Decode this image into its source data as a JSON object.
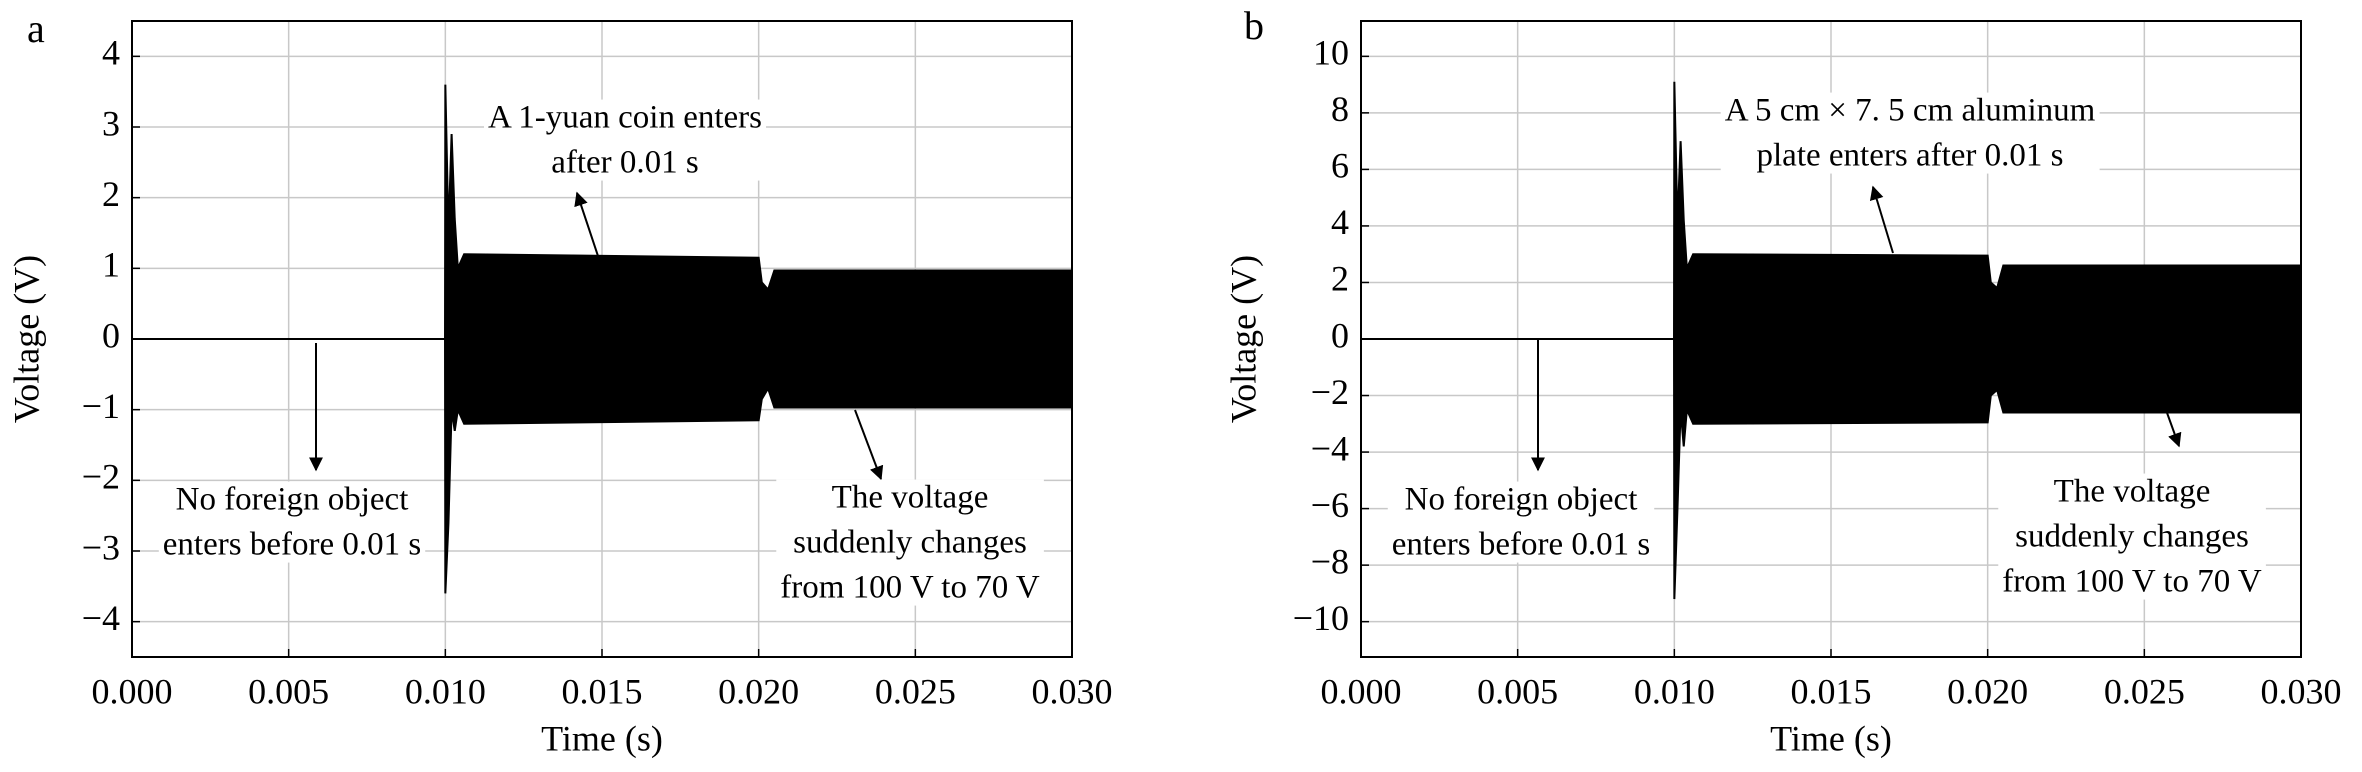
{
  "chart_data": [
    {
      "type": "area",
      "label": "a",
      "xlabel": "Time (s)",
      "ylabel": "Voltage (V)",
      "color": "#000000",
      "grid": true,
      "x": [
        0,
        0.00999,
        0.01,
        0.0101,
        0.0102,
        0.0103,
        0.0104,
        0.0106,
        0.02,
        0.0201,
        0.0203,
        0.0205,
        0.03
      ],
      "high": [
        0,
        0,
        3.6,
        1.5,
        2.9,
        1.7,
        1.0,
        1.2,
        1.15,
        0.8,
        0.7,
        0.97,
        0.97
      ],
      "low": [
        0,
        0,
        -3.6,
        -2.6,
        -1.0,
        -1.3,
        -1.0,
        -1.2,
        -1.15,
        -0.85,
        -0.7,
        -0.97,
        -0.97
      ],
      "xlim": [
        0,
        0.03
      ],
      "xticks": [
        {
          "value": 0,
          "label": "0.000"
        },
        {
          "value": 0.005,
          "label": "0.005"
        },
        {
          "value": 0.01,
          "label": "0.010"
        },
        {
          "value": 0.015,
          "label": "0.015"
        },
        {
          "value": 0.02,
          "label": "0.020"
        },
        {
          "value": 0.025,
          "label": "0.025"
        },
        {
          "value": 0.03,
          "label": "0.030"
        }
      ],
      "ylim": [
        -4.5,
        4.5
      ],
      "yticks": [
        {
          "value": -4,
          "label": "−4"
        },
        {
          "value": -3,
          "label": "−3"
        },
        {
          "value": -2,
          "label": "−2"
        },
        {
          "value": -1,
          "label": "−1"
        },
        0,
        1,
        2,
        3,
        4
      ],
      "annotations": [
        {
          "lines": [
            "A 1-yuan coin enters",
            "after 0.01 s"
          ]
        },
        {
          "lines": [
            "No foreign object",
            "enters before 0.01 s"
          ]
        },
        {
          "lines": [
            "The voltage",
            "suddenly changes",
            "from 100 V to 70 V"
          ]
        }
      ]
    },
    {
      "type": "area",
      "label": "b",
      "xlabel": "Time (s)",
      "ylabel": "Voltage (V)",
      "color": "#000000",
      "grid": true,
      "x": [
        0,
        0.00999,
        0.01,
        0.0101,
        0.0102,
        0.0103,
        0.0104,
        0.0106,
        0.02,
        0.0201,
        0.0203,
        0.0205,
        0.03
      ],
      "high": [
        0,
        0,
        9.1,
        4.0,
        7.0,
        4.2,
        2.5,
        3.0,
        2.95,
        2.0,
        1.8,
        2.6,
        2.6
      ],
      "low": [
        0,
        0,
        -9.2,
        -6.0,
        -2.5,
        -3.8,
        -2.5,
        -3.0,
        -2.95,
        -2.0,
        -1.8,
        -2.6,
        -2.6
      ],
      "xlim": [
        0,
        0.03
      ],
      "xticks": [
        {
          "value": 0,
          "label": "0.000"
        },
        {
          "value": 0.005,
          "label": "0.005"
        },
        {
          "value": 0.01,
          "label": "0.010"
        },
        {
          "value": 0.015,
          "label": "0.015"
        },
        {
          "value": 0.02,
          "label": "0.020"
        },
        {
          "value": 0.025,
          "label": "0.025"
        },
        {
          "value": 0.03,
          "label": "0.030"
        }
      ],
      "ylim": [
        -11.25,
        11.25
      ],
      "yticks": [
        {
          "value": -10,
          "label": "−10"
        },
        {
          "value": -8,
          "label": "−8"
        },
        {
          "value": -6,
          "label": "−6"
        },
        {
          "value": -4,
          "label": "−4"
        },
        {
          "value": -2,
          "label": "−2"
        },
        0,
        2,
        4,
        6,
        8,
        10
      ],
      "annotations": [
        {
          "lines": [
            "A 5 cm × 7. 5 cm aluminum",
            "plate enters after 0.01 s"
          ]
        },
        {
          "lines": [
            "No foreign object",
            "enters before 0.01 s"
          ]
        },
        {
          "lines": [
            "The voltage",
            "suddenly changes",
            "from 100 V to 70 V"
          ]
        }
      ]
    }
  ]
}
